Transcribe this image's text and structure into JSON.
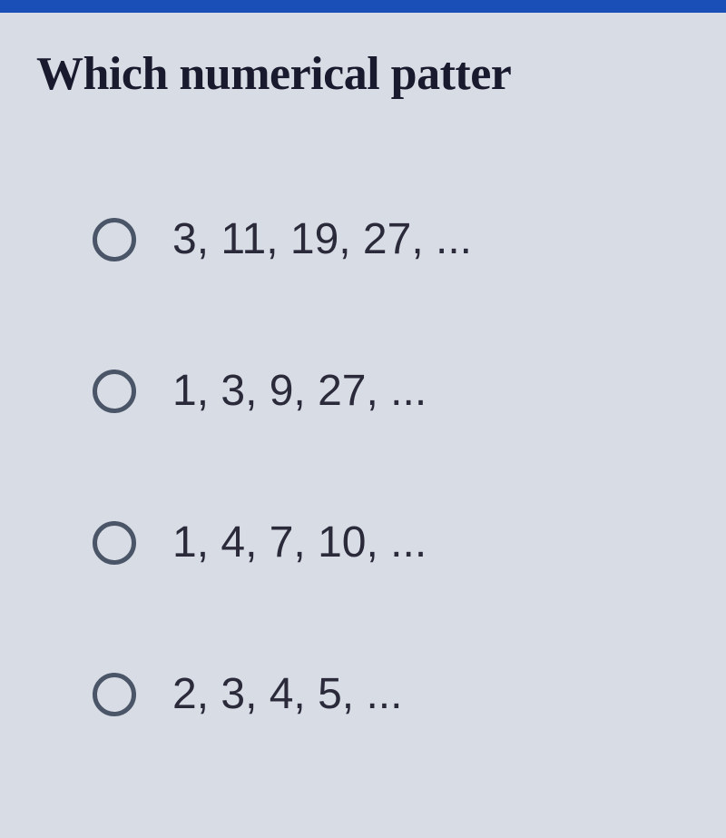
{
  "question": {
    "text": "Which numerical patter",
    "text_color": "#1a1a2e",
    "font_size_pt": 39,
    "font_weight": "bold"
  },
  "options": [
    {
      "label": "3, 11, 19, 27, ...",
      "selected": false
    },
    {
      "label": "1, 3, 9, 27, ...",
      "selected": false
    },
    {
      "label": "1, 4, 7, 10, ...",
      "selected": false
    },
    {
      "label": "2, 3, 4, 5, ...",
      "selected": false
    }
  ],
  "styling": {
    "background_color": "#d8dce4",
    "top_bar_color": "#1a4fb8",
    "radio_border_color": "#4a5568",
    "option_text_color": "#2a2a3a",
    "option_font_size_pt": 36
  }
}
